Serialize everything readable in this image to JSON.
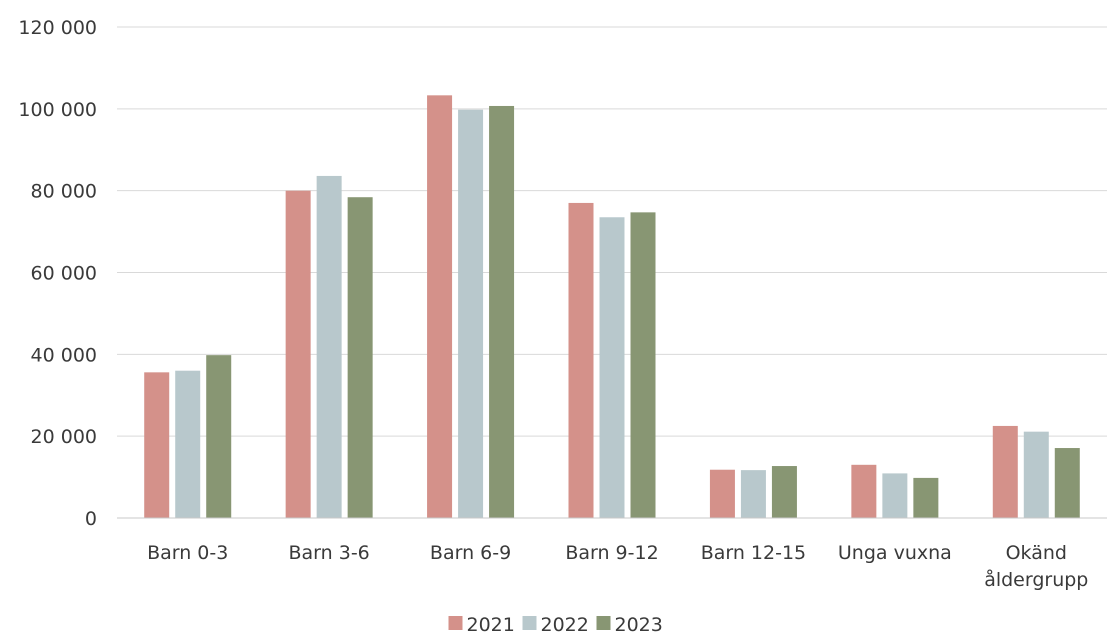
{
  "chart_data": {
    "type": "bar",
    "title": "",
    "xlabel": "",
    "ylabel": "",
    "categories": [
      [
        "Barn 0-3"
      ],
      [
        "Barn 3-6"
      ],
      [
        "Barn 6-9"
      ],
      [
        "Barn 9-12"
      ],
      [
        "Barn 12-15"
      ],
      [
        "Unga vuxna"
      ],
      [
        "Okänd",
        "åldergrupp"
      ]
    ],
    "series": [
      {
        "name": "2021",
        "color": "#d4918a",
        "values": [
          35600,
          80000,
          103300,
          77000,
          11800,
          13000,
          22500
        ]
      },
      {
        "name": "2022",
        "color": "#b8c8cc",
        "values": [
          36000,
          83600,
          99800,
          73500,
          11700,
          10900,
          21100
        ]
      },
      {
        "name": "2023",
        "color": "#889673",
        "values": [
          39800,
          78400,
          100700,
          74700,
          12700,
          9800,
          17100
        ]
      }
    ],
    "ylim": [
      0,
      120000
    ],
    "yticks": [
      0,
      20000,
      40000,
      60000,
      80000,
      100000,
      120000
    ],
    "ytick_labels": [
      "0",
      "20 000",
      "40 000",
      "60 000",
      "80 000",
      "100 000",
      "120 000"
    ],
    "grid": true,
    "legend_position": "bottom-center"
  }
}
